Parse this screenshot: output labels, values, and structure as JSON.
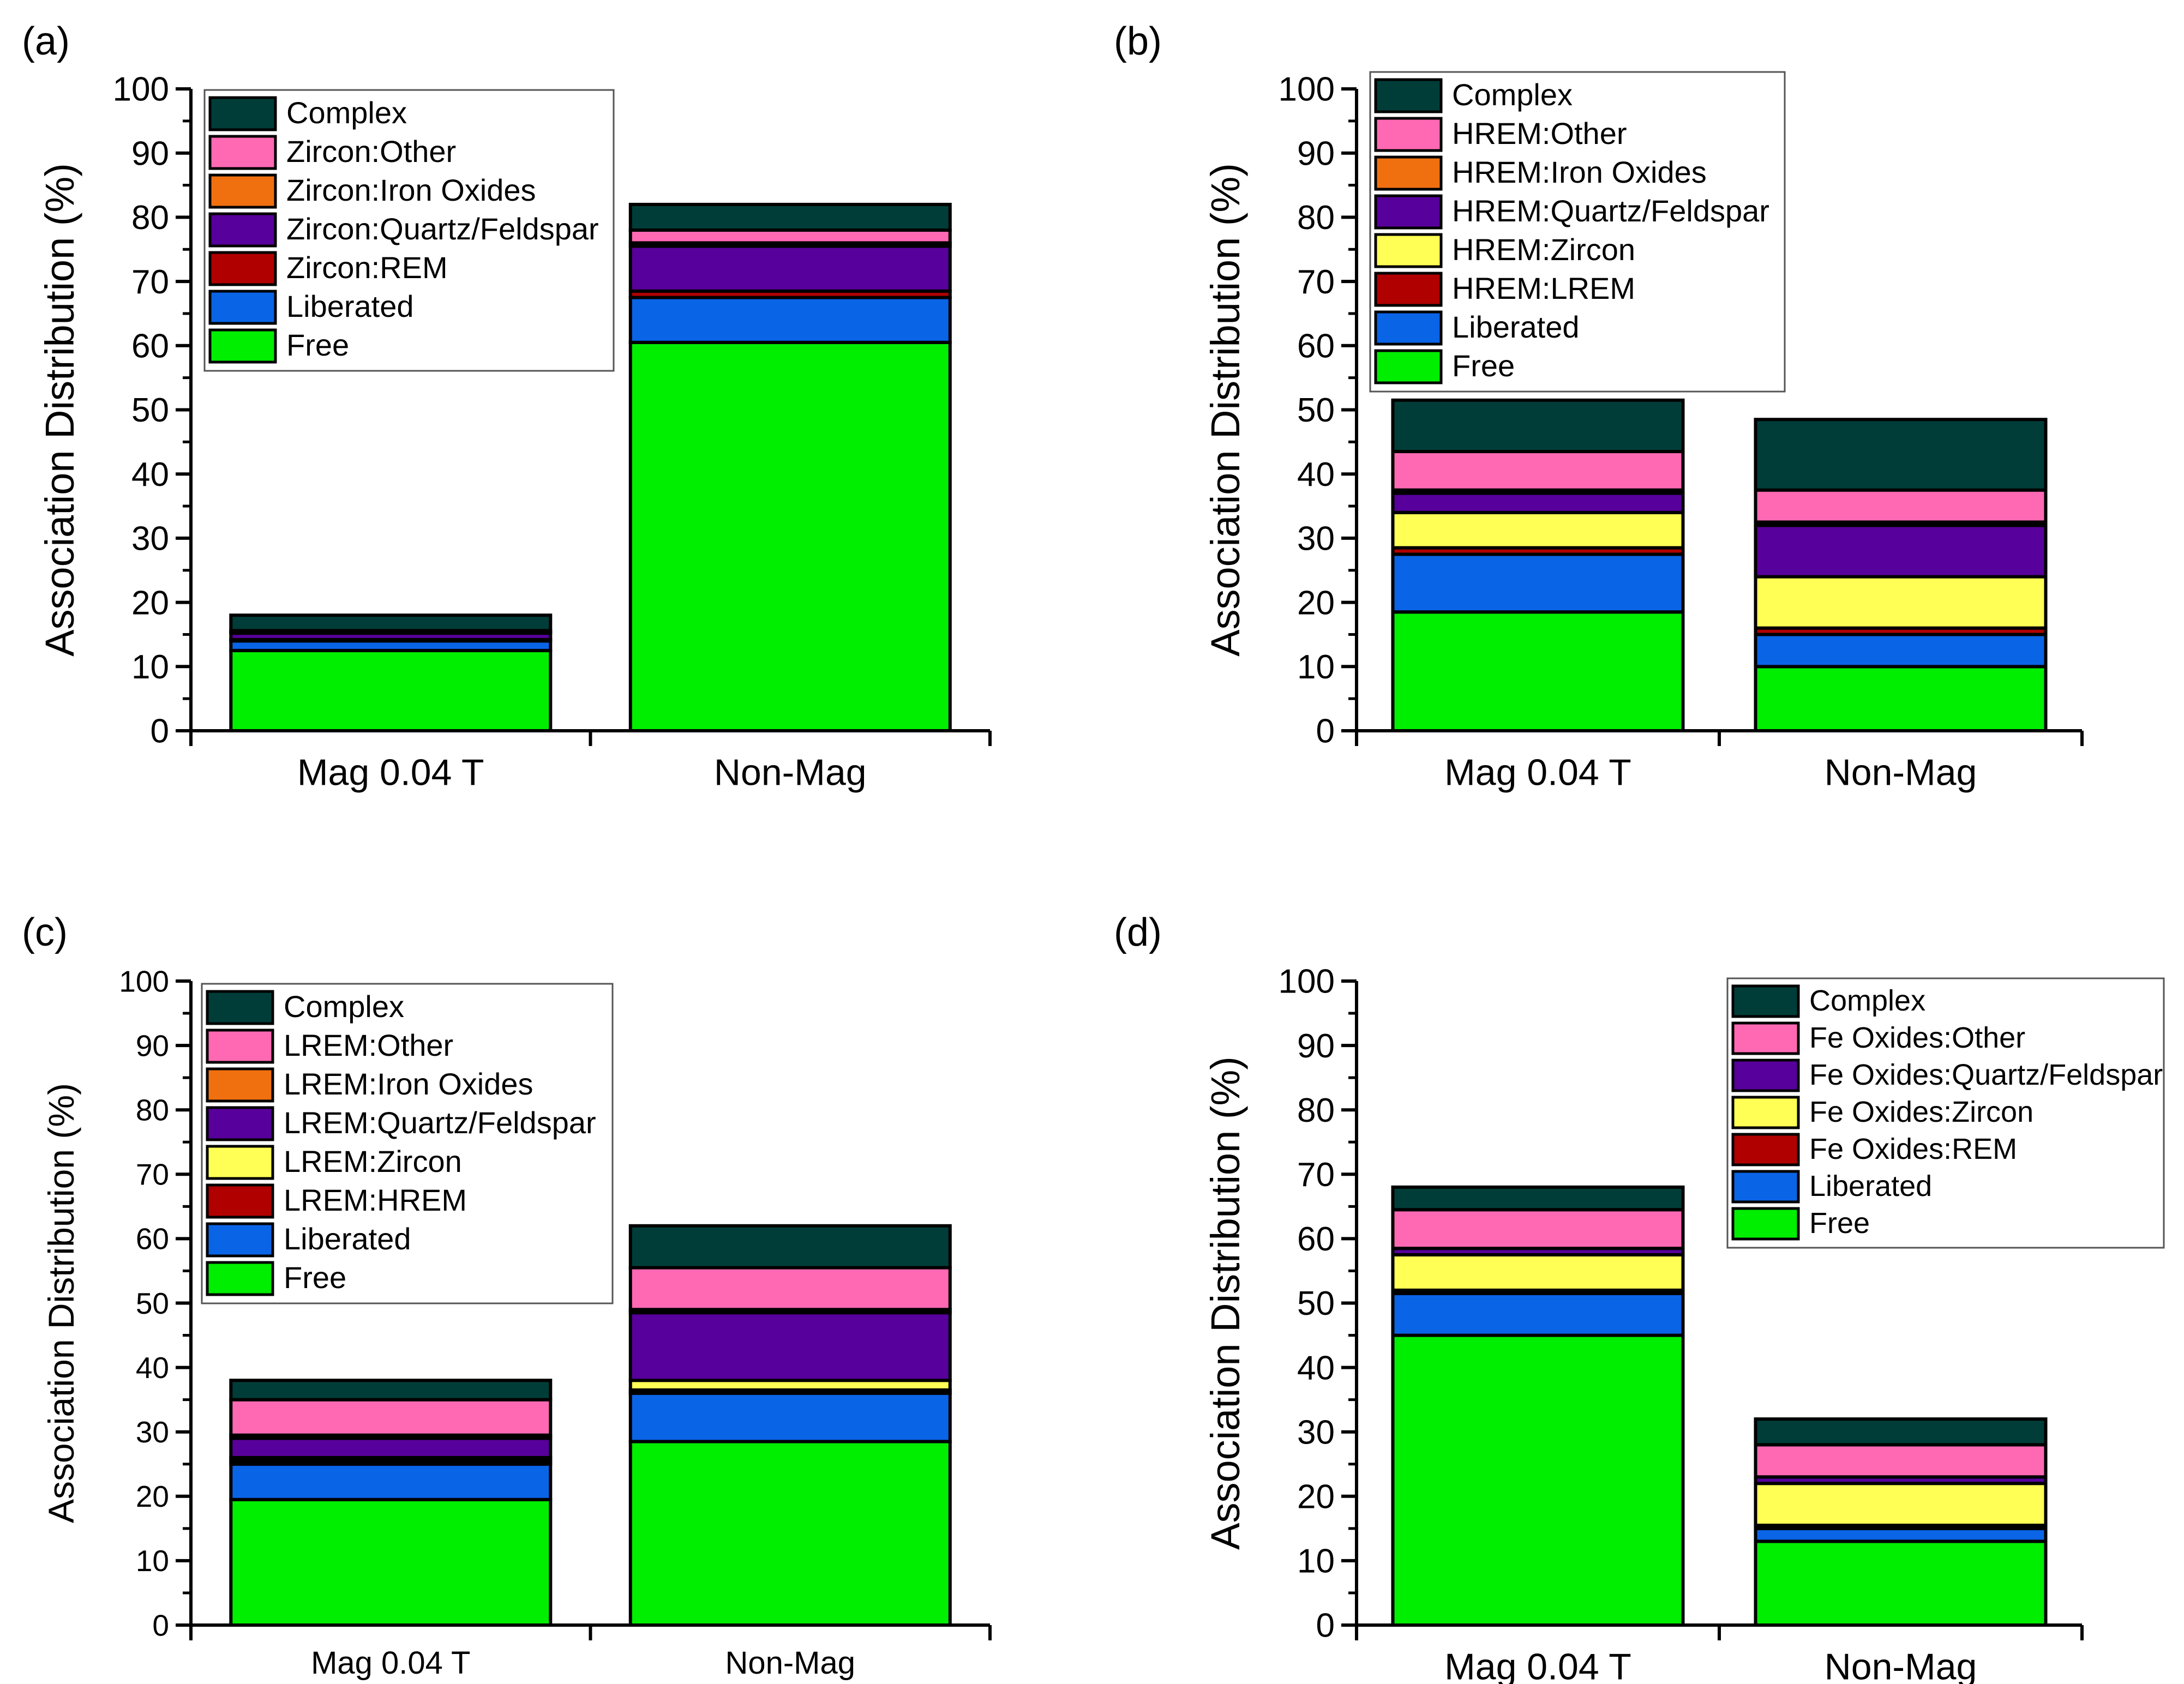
{
  "chart_data": [
    {
      "type": "bar",
      "stacked": true,
      "panel": "(a)",
      "ylabel": "Association Distribution (%)",
      "xlabel": "",
      "ylim": [
        0,
        100
      ],
      "yticks": [
        0,
        10,
        20,
        30,
        40,
        50,
        60,
        70,
        80,
        90,
        100
      ],
      "categories": [
        "Mag 0.04 T",
        "Non-Mag"
      ],
      "legend_position": "top-left",
      "series": [
        {
          "name": "Free",
          "color": "#00EE00",
          "values": [
            12.5,
            60.5
          ]
        },
        {
          "name": "Liberated",
          "color": "#0A64E6",
          "values": [
            1.5,
            7.0
          ]
        },
        {
          "name": "Zircon:REM",
          "color": "#B00000",
          "values": [
            0.2,
            1.0
          ]
        },
        {
          "name": "Zircon:Quartz/Feldspar",
          "color": "#58009B",
          "values": [
            1.0,
            7.0
          ]
        },
        {
          "name": "Zircon:Iron Oxides",
          "color": "#F07010",
          "values": [
            0.2,
            0.5
          ]
        },
        {
          "name": "Zircon:Other",
          "color": "#FF69B4",
          "values": [
            0.2,
            2.0
          ]
        },
        {
          "name": "Complex",
          "color": "#003D38",
          "values": [
            2.4,
            4.0
          ]
        }
      ]
    },
    {
      "type": "bar",
      "stacked": true,
      "panel": "(b)",
      "ylabel": "Association Distribution (%)",
      "xlabel": "",
      "ylim": [
        0,
        100
      ],
      "yticks": [
        0,
        10,
        20,
        30,
        40,
        50,
        60,
        70,
        80,
        90,
        100
      ],
      "categories": [
        "Mag 0.04 T",
        "Non-Mag"
      ],
      "legend_position": "top-left",
      "series": [
        {
          "name": "Free",
          "color": "#00EE00",
          "values": [
            18.5,
            10.0
          ]
        },
        {
          "name": "Liberated",
          "color": "#0A64E6",
          "values": [
            9.0,
            5.0
          ]
        },
        {
          "name": "HREM:LREM",
          "color": "#B00000",
          "values": [
            1.0,
            1.0
          ]
        },
        {
          "name": "HREM:Zircon",
          "color": "#FFFF55",
          "values": [
            5.5,
            8.0
          ]
        },
        {
          "name": "HREM:Quartz/Feldspar",
          "color": "#58009B",
          "values": [
            3.0,
            8.0
          ]
        },
        {
          "name": "HREM:Iron Oxides",
          "color": "#F07010",
          "values": [
            0.5,
            0.5
          ]
        },
        {
          "name": "HREM:Other",
          "color": "#FF69B4",
          "values": [
            6.0,
            5.0
          ]
        },
        {
          "name": "Complex",
          "color": "#003D38",
          "values": [
            8.0,
            11.0
          ]
        }
      ]
    },
    {
      "type": "bar",
      "stacked": true,
      "panel": "(c)",
      "ylabel": "Association Distribution (%)",
      "xlabel": "",
      "ylim": [
        0,
        100
      ],
      "yticks": [
        0,
        10,
        20,
        30,
        40,
        50,
        60,
        70,
        80,
        90,
        100
      ],
      "categories": [
        "Mag 0.04 T",
        "Non-Mag"
      ],
      "legend_position": "top-left",
      "series": [
        {
          "name": "Free",
          "color": "#00EE00",
          "values": [
            19.5,
            28.5
          ]
        },
        {
          "name": "Liberated",
          "color": "#0A64E6",
          "values": [
            5.5,
            7.5
          ]
        },
        {
          "name": "LREM:HREM",
          "color": "#B00000",
          "values": [
            0.5,
            0.5
          ]
        },
        {
          "name": "LREM:Zircon",
          "color": "#FFFF55",
          "values": [
            0.5,
            1.5
          ]
        },
        {
          "name": "LREM:Quartz/Feldspar",
          "color": "#58009B",
          "values": [
            3.0,
            10.5
          ]
        },
        {
          "name": "LREM:Iron Oxides",
          "color": "#F07010",
          "values": [
            0.5,
            0.5
          ]
        },
        {
          "name": "LREM:Other",
          "color": "#FF69B4",
          "values": [
            5.5,
            6.5
          ]
        },
        {
          "name": "Complex",
          "color": "#003D38",
          "values": [
            3.0,
            6.5
          ]
        }
      ]
    },
    {
      "type": "bar",
      "stacked": true,
      "panel": "(d)",
      "ylabel": "Association Distribution (%)",
      "xlabel": "",
      "ylim": [
        0,
        100
      ],
      "yticks": [
        0,
        10,
        20,
        30,
        40,
        50,
        60,
        70,
        80,
        90,
        100
      ],
      "categories": [
        "Mag 0.04 T",
        "Non-Mag"
      ],
      "legend_position": "top-right",
      "series": [
        {
          "name": "Free",
          "color": "#00EE00",
          "values": [
            45.0,
            13.0
          ]
        },
        {
          "name": "Liberated",
          "color": "#0A64E6",
          "values": [
            6.5,
            2.0
          ]
        },
        {
          "name": "Fe Oxides:REM",
          "color": "#B00000",
          "values": [
            0.5,
            0.5
          ]
        },
        {
          "name": "Fe Oxides:Zircon",
          "color": "#FFFF55",
          "values": [
            5.5,
            6.5
          ]
        },
        {
          "name": "Fe Oxides:Quartz/Feldspar",
          "color": "#58009B",
          "values": [
            1.0,
            1.0
          ]
        },
        {
          "name": "Fe Oxides:Other",
          "color": "#FF69B4",
          "values": [
            6.0,
            5.0
          ]
        },
        {
          "name": "Complex",
          "color": "#003D38",
          "values": [
            3.5,
            4.0
          ]
        }
      ]
    }
  ]
}
